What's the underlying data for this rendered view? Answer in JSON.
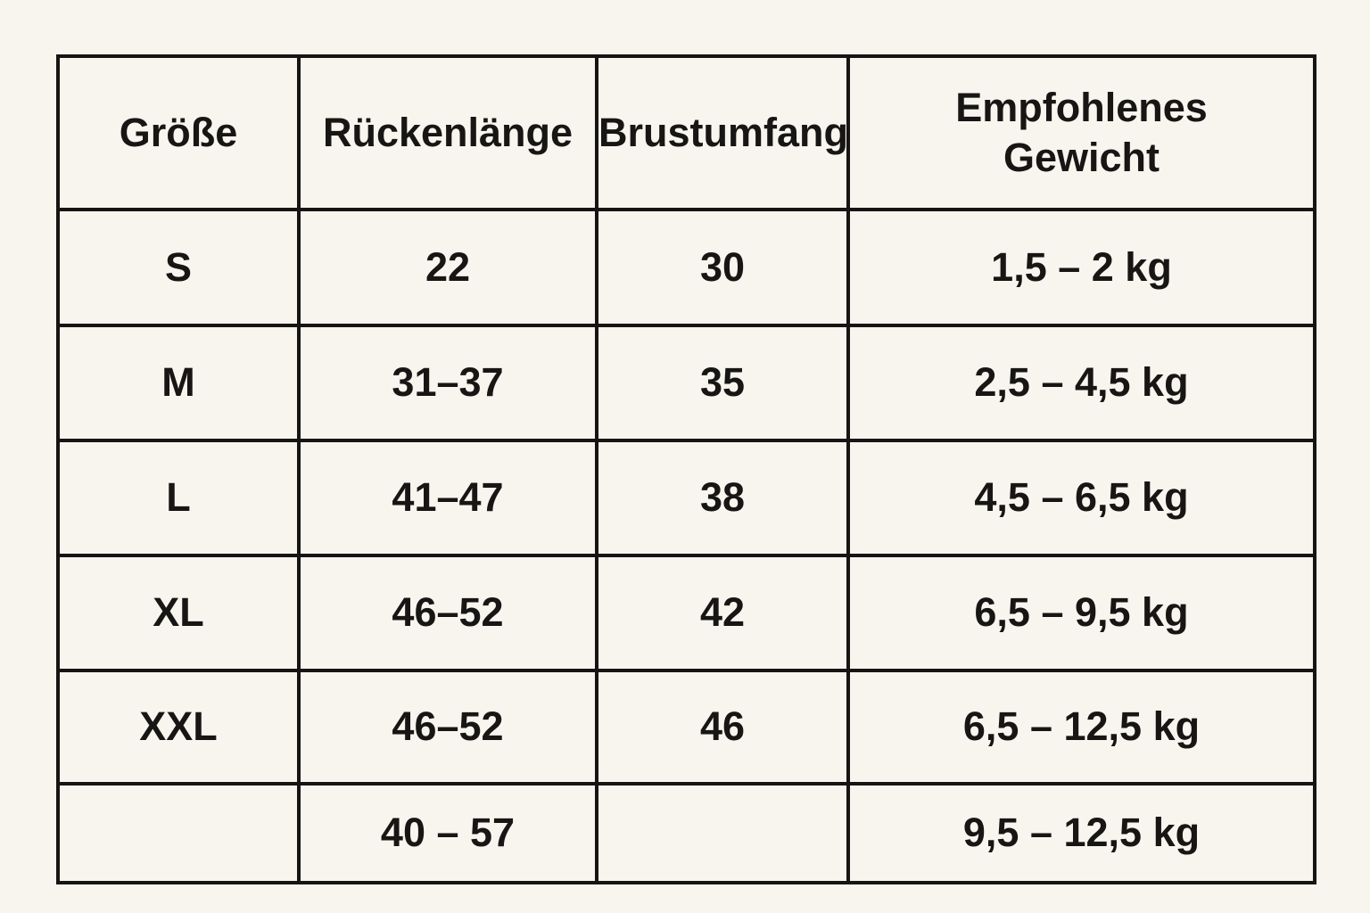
{
  "colors": {
    "bg": "#f7f5ee",
    "line": "#161514",
    "text": "#171614"
  },
  "chart_data": {
    "type": "table",
    "title": "",
    "columns": [
      "Größe",
      "Rückenlänge",
      "Brustumfang",
      "Empfohlenes Gewicht"
    ],
    "rows": [
      {
        "size": "S",
        "back_length": "22",
        "chest": "30",
        "weight": "1,5 – 2 kg"
      },
      {
        "size": "M",
        "back_length": "31–37",
        "chest": "35",
        "weight": "2,5 – 4,5 kg"
      },
      {
        "size": "L",
        "back_length": "41–47",
        "chest": "38",
        "weight": "4,5 – 6,5 kg"
      },
      {
        "size": "XL",
        "back_length": "46–52",
        "chest": "42",
        "weight": "6,5 – 9,5 kg"
      },
      {
        "size": "XXL",
        "back_length": "46–52",
        "chest": "46",
        "weight": "6,5 – 12,5 kg"
      },
      {
        "size": "",
        "back_length": "40 – 57",
        "chest": "",
        "weight": "9,5 – 12,5 kg"
      }
    ]
  }
}
